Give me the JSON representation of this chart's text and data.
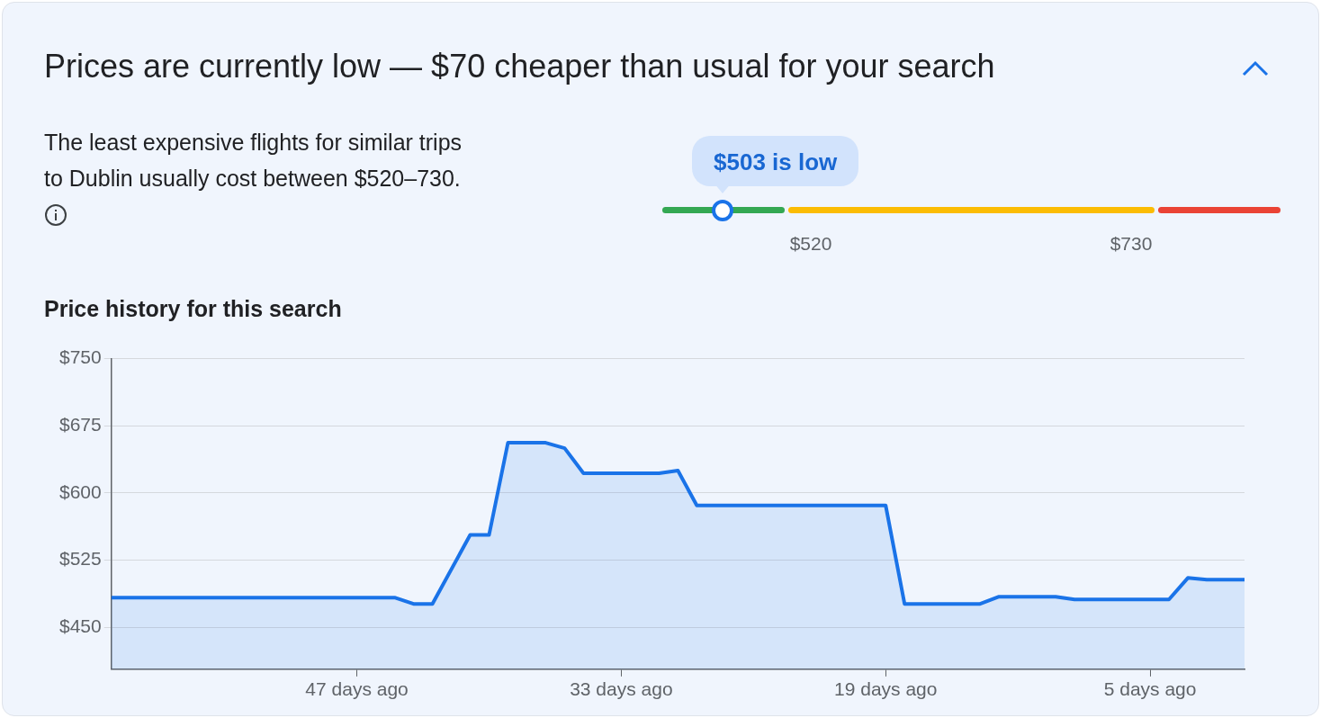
{
  "chart_data": [
    {
      "type": "other",
      "title": "Prices are currently low — $70 cheaper than usual for your search",
      "annotations": [
        "The least expensive flights for similar trips to Dublin usually cost between $520–730.",
        "$503 is low",
        "$520",
        "$730"
      ]
    },
    {
      "type": "area",
      "title": "Price history for this search",
      "x": [
        60,
        45,
        44,
        43,
        41,
        40,
        39,
        37,
        36,
        35,
        31,
        30,
        29,
        19,
        18,
        14,
        13,
        10,
        9,
        4,
        3,
        2,
        0
      ],
      "series": [
        {
          "color": "#1a73e8",
          "values": [
            483,
            483,
            476,
            476,
            553,
            553,
            656,
            656,
            650,
            622,
            622,
            625,
            586,
            586,
            476,
            476,
            484,
            484,
            481,
            481,
            505,
            503,
            503
          ]
        }
      ],
      "xlim": [
        60,
        0
      ],
      "xticks": [
        {
          "value": 47,
          "label": "47 days ago"
        },
        {
          "value": 33,
          "label": "33 days ago"
        },
        {
          "value": 19,
          "label": "19 days ago"
        },
        {
          "value": 5,
          "label": "5 days ago"
        }
      ],
      "ylim": [
        403,
        750
      ],
      "yticks": [
        {
          "value": 450,
          "label": "$450"
        },
        {
          "value": 525,
          "label": "$525"
        },
        {
          "value": 600,
          "label": "$600"
        },
        {
          "value": 675,
          "label": "$675"
        },
        {
          "value": 750,
          "label": "$750"
        }
      ],
      "grid": "y",
      "marker": "none"
    }
  ]
}
